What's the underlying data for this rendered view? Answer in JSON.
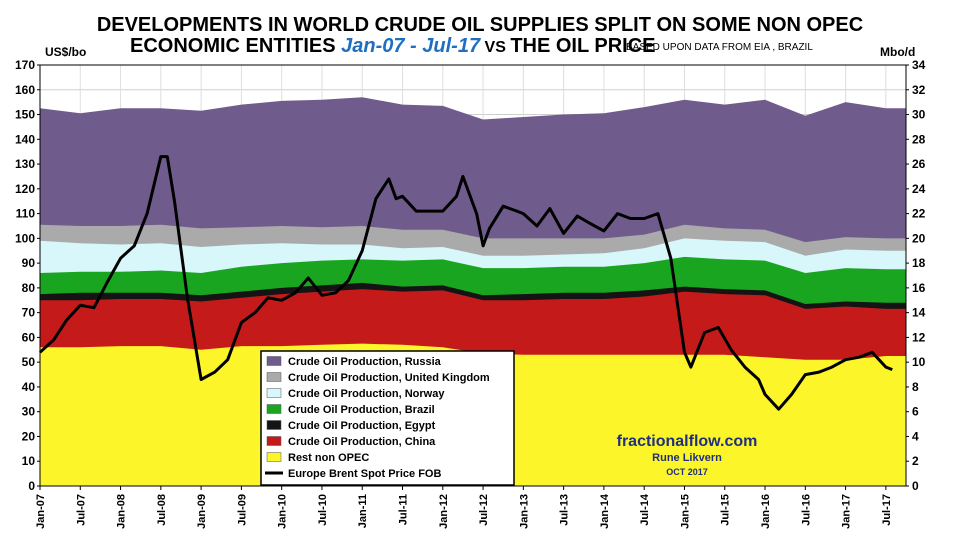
{
  "colors": {
    "russia": "#6f5c8c",
    "uk": "#aaaaaa",
    "norway": "#d7f7fb",
    "brazil": "#1aa520",
    "egypt": "#141414",
    "china": "#c51a1a",
    "rest": "#fbf52a",
    "price": "#000000",
    "title_range": "#1f6fc0",
    "watermark": "#1f2f80"
  },
  "chart_data": {
    "type": "area",
    "title": {
      "line1": "DEVELOPMENTS IN WORLD CRUDE OIL SUPPLIES SPLIT ON SOME  NON OPEC",
      "line2_prefix": "ECONOMIC ENTITIES ",
      "line2_range": "Jan-07 - Jul-17",
      "line2_vs": " VS ",
      "line2_suffix": "THE OIL PRICE",
      "note": "BASED UPON DATA FROM EIA , BRAZIL"
    },
    "y_left_unit": "US$/bo",
    "y_right_unit": "Mbo/d",
    "y_left_range": [
      0,
      170
    ],
    "y_left_ticks": [
      "0",
      "10",
      "20",
      "30",
      "40",
      "50",
      "60",
      "70",
      "80",
      "90",
      "100",
      "110",
      "120",
      "130",
      "140",
      "150",
      "160",
      "170"
    ],
    "y_right_range": [
      0,
      34
    ],
    "y_right_ticks": [
      "0",
      "2",
      "4",
      "6",
      "8",
      "10",
      "12",
      "14",
      "16",
      "18",
      "20",
      "22",
      "24",
      "26",
      "28",
      "30",
      "32",
      "34"
    ],
    "x_ticks": [
      "Jan-07",
      "Jul-07",
      "Jan-08",
      "Jul-08",
      "Jan-09",
      "Jul-09",
      "Jan-10",
      "Jul-10",
      "Jan-11",
      "Jul-11",
      "Jan-12",
      "Jul-12",
      "Jan-13",
      "Jul-13",
      "Jan-14",
      "Jul-14",
      "Jan-15",
      "Jul-15",
      "Jan-16",
      "Jul-16",
      "Jan-17",
      "Jul-17"
    ],
    "x_tick_years": [
      2007.0,
      2007.5,
      2008.0,
      2008.5,
      2009.0,
      2009.5,
      2010.0,
      2010.5,
      2011.0,
      2011.5,
      2012.0,
      2012.5,
      2013.0,
      2013.5,
      2014.0,
      2014.5,
      2015.0,
      2015.5,
      2016.0,
      2016.5,
      2017.0,
      2017.5
    ],
    "stacked_areas_cumulative_mbod": {
      "note": "cumulative top of each stacked band on right axis (Mbo/d), sampled at x_tick_years",
      "series": [
        {
          "name": "Rest non OPEC",
          "color_key": "rest",
          "tops": [
            11.2,
            11.2,
            11.3,
            11.3,
            11.0,
            11.3,
            11.3,
            11.4,
            11.5,
            11.4,
            11.2,
            10.7,
            10.6,
            10.6,
            10.6,
            10.6,
            10.6,
            10.6,
            10.4,
            10.2,
            10.2,
            10.5
          ]
        },
        {
          "name": "Crude Oil Production, China",
          "color_key": "china",
          "tops": [
            15.0,
            15.0,
            15.1,
            15.1,
            14.9,
            15.2,
            15.5,
            15.7,
            15.9,
            15.7,
            15.8,
            15.0,
            15.0,
            15.1,
            15.1,
            15.3,
            15.7,
            15.5,
            15.4,
            14.3,
            14.5,
            14.3
          ]
        },
        {
          "name": "Crude Oil Production, Egypt",
          "color_key": "egypt",
          "tops": [
            15.5,
            15.6,
            15.6,
            15.6,
            15.4,
            15.7,
            16.0,
            16.2,
            16.4,
            16.1,
            16.2,
            15.4,
            15.5,
            15.6,
            15.6,
            15.8,
            16.1,
            15.9,
            15.8,
            14.7,
            14.9,
            14.8
          ]
        },
        {
          "name": "Crude Oil Production, Brazil",
          "color_key": "brazil",
          "tops": [
            17.2,
            17.3,
            17.3,
            17.4,
            17.2,
            17.7,
            18.0,
            18.2,
            18.3,
            18.2,
            18.3,
            17.6,
            17.6,
            17.7,
            17.7,
            18.0,
            18.5,
            18.3,
            18.2,
            17.2,
            17.6,
            17.5
          ]
        },
        {
          "name": "Crude Oil Production, Norway",
          "color_key": "norway",
          "tops": [
            19.8,
            19.6,
            19.5,
            19.6,
            19.3,
            19.5,
            19.6,
            19.5,
            19.5,
            19.2,
            19.3,
            18.6,
            18.6,
            18.7,
            18.8,
            19.2,
            20.0,
            19.8,
            19.7,
            18.6,
            19.1,
            19.0
          ]
        },
        {
          "name": "Crude Oil Production, United Kingdom",
          "color_key": "uk",
          "tops": [
            21.1,
            21.0,
            21.0,
            21.1,
            20.8,
            20.9,
            21.0,
            20.9,
            21.0,
            20.7,
            20.7,
            20.0,
            20.0,
            20.0,
            20.0,
            20.3,
            21.1,
            20.8,
            20.7,
            19.7,
            20.1,
            20.0
          ]
        },
        {
          "name": "Crude Oil Production, Russia",
          "color_key": "russia",
          "tops": [
            30.5,
            30.1,
            30.5,
            30.5,
            30.3,
            30.8,
            31.1,
            31.2,
            31.4,
            30.8,
            30.7,
            29.6,
            29.8,
            30.0,
            30.1,
            30.6,
            31.2,
            30.8,
            31.2,
            29.9,
            31.0,
            30.5
          ]
        }
      ]
    },
    "price_series": {
      "name": "Europe Brent Spot Price FOB",
      "unit": "US$/bo",
      "x": [
        2007.0,
        2007.17,
        2007.33,
        2007.5,
        2007.67,
        2007.83,
        2008.0,
        2008.17,
        2008.33,
        2008.5,
        2008.58,
        2008.67,
        2008.83,
        2009.0,
        2009.17,
        2009.33,
        2009.5,
        2009.67,
        2009.83,
        2010.0,
        2010.17,
        2010.33,
        2010.5,
        2010.67,
        2010.83,
        2011.0,
        2011.17,
        2011.33,
        2011.42,
        2011.5,
        2011.67,
        2011.83,
        2012.0,
        2012.17,
        2012.25,
        2012.42,
        2012.5,
        2012.58,
        2012.75,
        2012.92,
        2013.0,
        2013.17,
        2013.33,
        2013.5,
        2013.67,
        2013.83,
        2014.0,
        2014.17,
        2014.33,
        2014.5,
        2014.67,
        2014.83,
        2015.0,
        2015.08,
        2015.25,
        2015.42,
        2015.58,
        2015.75,
        2015.92,
        2016.0,
        2016.17,
        2016.33,
        2016.5,
        2016.67,
        2016.83,
        2017.0,
        2017.17,
        2017.33,
        2017.5,
        2017.58
      ],
      "y": [
        54,
        59,
        67,
        73,
        72,
        82,
        92,
        97,
        110,
        133,
        133,
        115,
        76,
        43,
        46,
        51,
        66,
        70,
        76,
        75,
        78,
        84,
        77,
        78,
        83,
        95,
        116,
        124,
        116,
        117,
        111,
        111,
        111,
        117,
        125,
        110,
        97,
        104,
        113,
        111,
        110,
        105,
        112,
        102,
        109,
        106,
        103,
        110,
        108,
        108,
        110,
        92,
        54,
        48,
        62,
        64,
        55,
        48,
        43,
        37,
        31,
        37,
        45,
        46,
        48,
        51,
        52,
        54,
        48,
        47
      ]
    },
    "legend": [
      {
        "label": "Crude Oil Production, Russia",
        "color_key": "russia",
        "kind": "box"
      },
      {
        "label": "Crude Oil Production, United Kingdom",
        "color_key": "uk",
        "kind": "box"
      },
      {
        "label": "Crude Oil Production, Norway",
        "color_key": "norway",
        "kind": "box"
      },
      {
        "label": "Crude Oil Production, Brazil",
        "color_key": "brazil",
        "kind": "box"
      },
      {
        "label": "Crude Oil Production, Egypt",
        "color_key": "egypt",
        "kind": "box"
      },
      {
        "label": "Crude Oil Production, China",
        "color_key": "china",
        "kind": "box"
      },
      {
        "label": "Rest non OPEC",
        "color_key": "rest",
        "kind": "box"
      },
      {
        "label": "Europe Brent Spot Price FOB",
        "color_key": "price",
        "kind": "line"
      }
    ],
    "legend_placement": "lower-left-center",
    "watermark": {
      "site": "fractionalflow.com",
      "author": "Rune Likvern",
      "date": "OCT 2017"
    },
    "grid": true
  }
}
